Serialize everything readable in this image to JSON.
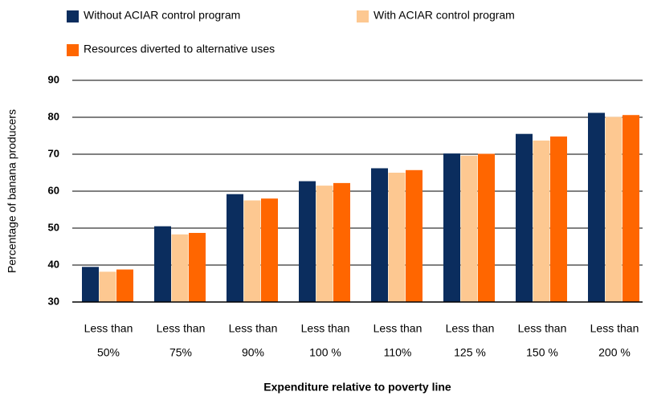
{
  "chart_data": {
    "type": "bar",
    "x_label": "Expenditure relative to poverty line",
    "y_label": "Percentage of banana producers",
    "categories": [
      [
        "Less than",
        "50%"
      ],
      [
        "Less than",
        "75%"
      ],
      [
        "Less than",
        "90%"
      ],
      [
        "Less than",
        "100 %"
      ],
      [
        "Less than",
        "110%"
      ],
      [
        "Less than",
        "125 %"
      ],
      [
        "Less than",
        "150 %"
      ],
      [
        "Less than",
        "200 %"
      ]
    ],
    "series": [
      {
        "name": "Without ACIAR control program",
        "color": "#0b2d5e",
        "values": [
          39.5,
          50.5,
          59.2,
          62.7,
          66.2,
          70.2,
          75.5,
          81.2
        ]
      },
      {
        "name": "With ACIAR control program",
        "color": "#fdc891",
        "values": [
          38.2,
          48.3,
          57.5,
          61.5,
          65.0,
          69.6,
          73.7,
          80.1
        ]
      },
      {
        "name": "Resources diverted to alternative uses",
        "color": "#ff6600",
        "values": [
          38.8,
          48.7,
          58.0,
          62.2,
          65.7,
          70.1,
          74.8,
          80.6
        ]
      }
    ],
    "ylim": [
      30,
      90
    ],
    "yticks": [
      30,
      40,
      50,
      60,
      70,
      80,
      90
    ],
    "grid": true
  }
}
